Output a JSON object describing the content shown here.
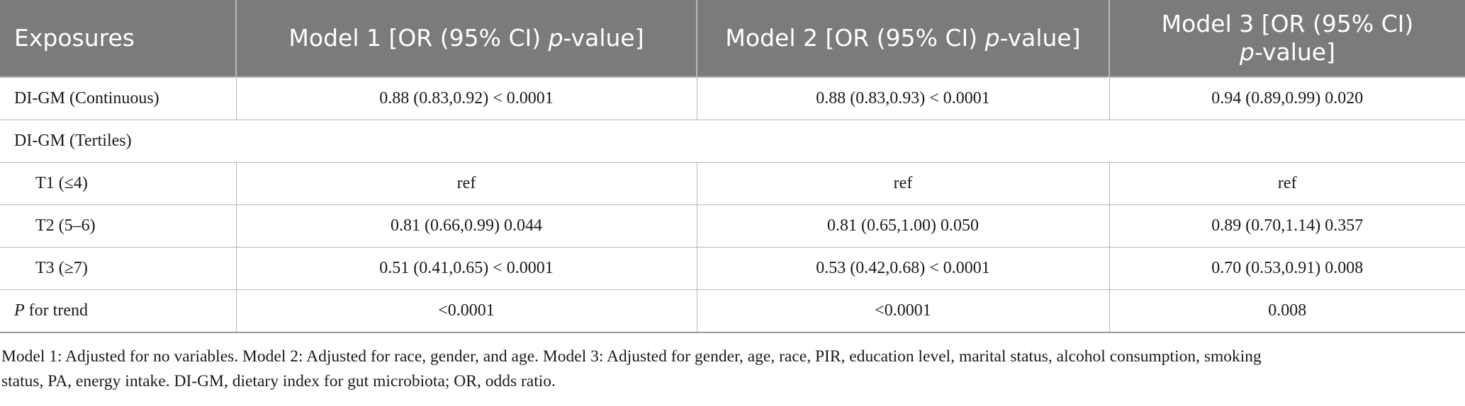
{
  "table": {
    "header": {
      "exposures": "Exposures",
      "model1_pre": "Model 1 [OR (95% CI) ",
      "model2_pre": "Model 2 [OR (95% CI) ",
      "model3_pre": "Model 3 [OR (95% CI)",
      "p_italic": "p",
      "value_suffix": "-value]"
    },
    "rows": {
      "continuous": {
        "label": "DI-GM (Continuous)",
        "m1": "0.88 (0.83,0.92) < 0.0001",
        "m2": "0.88 (0.83,0.93) < 0.0001",
        "m3": "0.94 (0.89,0.99) 0.020"
      },
      "tertiles": {
        "label": "DI-GM (Tertiles)"
      },
      "t1": {
        "label": "T1 (≤4)",
        "m1": "ref",
        "m2": "ref",
        "m3": "ref"
      },
      "t2": {
        "label": "T2 (5–6)",
        "m1": "0.81 (0.66,0.99) 0.044",
        "m2": "0.81 (0.65,1.00) 0.050",
        "m3": "0.89 (0.70,1.14) 0.357"
      },
      "t3": {
        "label": "T3 (≥7)",
        "m1": "0.51 (0.41,0.65) < 0.0001",
        "m2": "0.53 (0.42,0.68) < 0.0001",
        "m3": "0.70 (0.53,0.91) 0.008"
      },
      "trend": {
        "label_italic": "P",
        "label_rest": " for trend",
        "m1": "<0.0001",
        "m2": "<0.0001",
        "m3": "0.008"
      }
    }
  },
  "footnote": {
    "line1": "Model 1: Adjusted for no variables. Model 2: Adjusted for race, gender, and age. Model 3: Adjusted for gender, age, race, PIR, education level, marital status, alcohol consumption, smoking",
    "line2": "status, PA, energy intake. DI-GM, dietary index for gut microbiota; OR, odds ratio."
  }
}
